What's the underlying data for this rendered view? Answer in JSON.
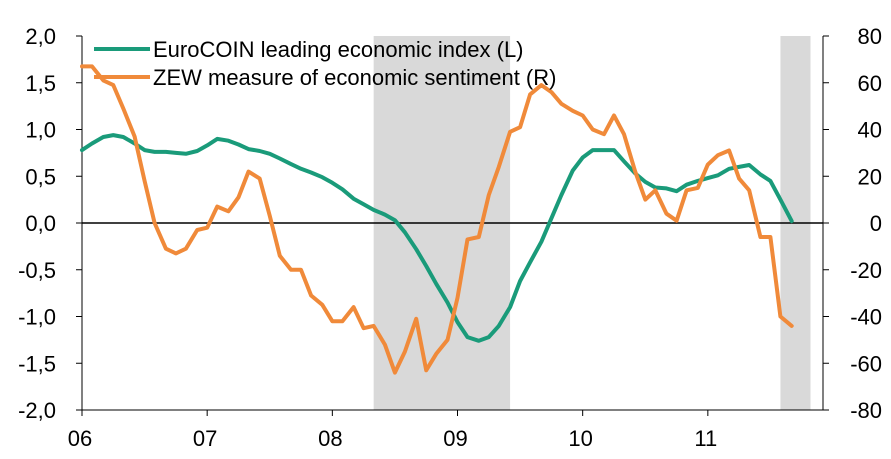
{
  "chart_data": {
    "type": "line",
    "title": "",
    "xlabel": "",
    "ylabel": "",
    "x_ticks": [
      "06",
      "07",
      "08",
      "09",
      "10",
      "11"
    ],
    "x_range": [
      2006.0,
      2011.92
    ],
    "y_left": {
      "range": [
        -2.0,
        2.0
      ],
      "ticks": [
        "-2,0",
        "-1,5",
        "-1,0",
        "-0,5",
        "0,0",
        "0,5",
        "1,0",
        "1,5",
        "2,0"
      ]
    },
    "y_right": {
      "range": [
        -80,
        80
      ],
      "ticks": [
        "-80",
        "-60",
        "-40",
        "-20",
        "0",
        "20",
        "40",
        "60",
        "80"
      ]
    },
    "legend_position": "top-left",
    "shaded_periods": [
      [
        2008.33,
        2009.42
      ],
      [
        2011.58,
        2011.82
      ]
    ],
    "zero_line": true,
    "grid": false,
    "series": [
      {
        "name": "EuroCOIN leading economic index (L)",
        "axis": "left",
        "color": "#1a9b7a",
        "x": [
          2006.0,
          2006.08,
          2006.17,
          2006.25,
          2006.33,
          2006.42,
          2006.5,
          2006.58,
          2006.67,
          2006.75,
          2006.83,
          2006.92,
          2007.0,
          2007.08,
          2007.17,
          2007.25,
          2007.33,
          2007.42,
          2007.5,
          2007.58,
          2007.67,
          2007.75,
          2007.83,
          2007.92,
          2008.0,
          2008.08,
          2008.17,
          2008.25,
          2008.33,
          2008.42,
          2008.5,
          2008.58,
          2008.67,
          2008.75,
          2008.83,
          2008.92,
          2009.0,
          2009.08,
          2009.17,
          2009.25,
          2009.33,
          2009.42,
          2009.5,
          2009.58,
          2009.67,
          2009.75,
          2009.83,
          2009.92,
          2010.0,
          2010.08,
          2010.17,
          2010.25,
          2010.33,
          2010.42,
          2010.5,
          2010.58,
          2010.67,
          2010.75,
          2010.83,
          2010.92,
          2011.0,
          2011.08,
          2011.17,
          2011.25,
          2011.33,
          2011.42,
          2011.5,
          2011.58,
          2011.67
        ],
        "values": [
          0.78,
          0.85,
          0.92,
          0.94,
          0.92,
          0.85,
          0.78,
          0.76,
          0.76,
          0.75,
          0.74,
          0.77,
          0.83,
          0.9,
          0.88,
          0.84,
          0.79,
          0.77,
          0.74,
          0.69,
          0.63,
          0.58,
          0.54,
          0.49,
          0.43,
          0.36,
          0.26,
          0.2,
          0.14,
          0.09,
          0.03,
          -0.1,
          -0.28,
          -0.46,
          -0.65,
          -0.85,
          -1.06,
          -1.22,
          -1.26,
          -1.22,
          -1.1,
          -0.9,
          -0.62,
          -0.42,
          -0.2,
          0.05,
          0.3,
          0.56,
          0.7,
          0.78,
          0.78,
          0.78,
          0.66,
          0.53,
          0.44,
          0.38,
          0.37,
          0.34,
          0.41,
          0.45,
          0.48,
          0.51,
          0.58,
          0.6,
          0.62,
          0.52,
          0.45,
          0.25,
          0.02
        ]
      },
      {
        "name": "ZEW measure of economic sentiment (R)",
        "axis": "right",
        "color": "#f08a3a",
        "x": [
          2006.0,
          2006.08,
          2006.17,
          2006.25,
          2006.33,
          2006.42,
          2006.5,
          2006.58,
          2006.67,
          2006.75,
          2006.83,
          2006.92,
          2007.0,
          2007.08,
          2007.17,
          2007.25,
          2007.33,
          2007.42,
          2007.5,
          2007.58,
          2007.67,
          2007.75,
          2007.83,
          2007.92,
          2008.0,
          2008.08,
          2008.17,
          2008.25,
          2008.33,
          2008.42,
          2008.5,
          2008.58,
          2008.67,
          2008.75,
          2008.83,
          2008.92,
          2009.0,
          2009.08,
          2009.17,
          2009.25,
          2009.33,
          2009.42,
          2009.5,
          2009.58,
          2009.67,
          2009.75,
          2009.83,
          2009.92,
          2010.0,
          2010.08,
          2010.17,
          2010.25,
          2010.33,
          2010.42,
          2010.5,
          2010.58,
          2010.67,
          2010.75,
          2010.83,
          2010.92,
          2011.0,
          2011.08,
          2011.17,
          2011.25,
          2011.33,
          2011.42,
          2011.5,
          2011.58,
          2011.67
        ],
        "values": [
          67,
          67,
          61,
          59,
          49,
          37,
          18,
          0,
          -11,
          -13,
          -11,
          -3,
          -2,
          7,
          5,
          11,
          22,
          19,
          3,
          -14,
          -20,
          -20,
          -31,
          -35,
          -42,
          -42,
          -36,
          -45,
          -44,
          -52,
          -64,
          -55,
          -41,
          -63,
          -56,
          -50,
          -32,
          -7,
          -6,
          12,
          24,
          39,
          41,
          55,
          59,
          56,
          51,
          48,
          46,
          40,
          38,
          46,
          38,
          22,
          10,
          14,
          4,
          1,
          14,
          15,
          25,
          29,
          31,
          19,
          14,
          -6,
          -6,
          -40,
          -44
        ]
      }
    ]
  }
}
